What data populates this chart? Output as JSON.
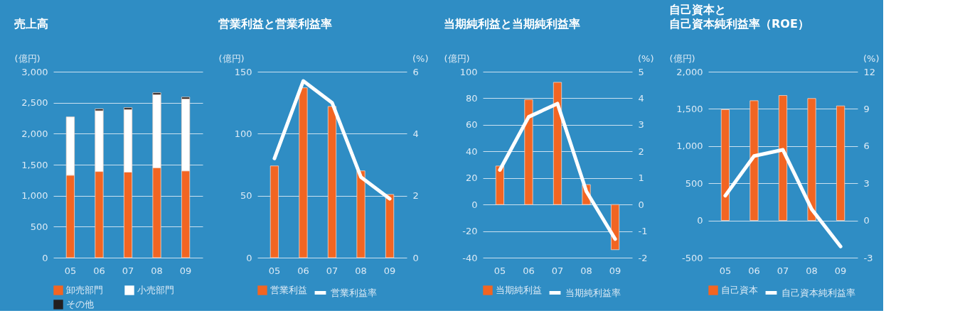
{
  "chart_data": [
    {
      "type": "bar",
      "title": "売上高",
      "ylabel": "(億円)",
      "categories": [
        "05",
        "06",
        "07",
        "08",
        "09"
      ],
      "stacked": true,
      "series": [
        {
          "name": "卸売部門",
          "color": "#f26522",
          "values": [
            1330,
            1390,
            1380,
            1450,
            1400
          ]
        },
        {
          "name": "小売部門",
          "color": "#ffffff",
          "values": [
            940,
            980,
            1010,
            1180,
            1160
          ]
        },
        {
          "name": "その他",
          "color": "#231f20",
          "values": [
            null,
            30,
            30,
            30,
            30
          ]
        }
      ],
      "ylim": [
        0,
        3000
      ],
      "yticks": [
        0,
        500,
        {
          "value": 1000,
          "label": "1,000"
        },
        {
          "value": 1500,
          "label": "1,500"
        },
        {
          "value": 2000,
          "label": "2,000"
        },
        {
          "value": 2500,
          "label": "2,500"
        },
        {
          "value": 3000,
          "label": "3,000"
        }
      ],
      "grid": "y",
      "legend": "bottom"
    },
    {
      "type": "bar",
      "title": "営業利益と営業利益率",
      "ylabel": "(億円)",
      "y2label": "(%)",
      "categories": [
        "05",
        "06",
        "07",
        "08",
        "09"
      ],
      "series": [
        {
          "name": "営業利益",
          "color": "#f26522",
          "values": [
            74,
            137,
            122,
            70,
            51
          ]
        },
        {
          "name": "営業利益率",
          "type": "line",
          "axis": "y2",
          "color": "#ffffff",
          "values": [
            3.2,
            5.7,
            5.0,
            2.6,
            1.9
          ]
        }
      ],
      "ylim": [
        0,
        150
      ],
      "yticks": [
        0,
        50,
        100,
        150
      ],
      "y2lim": [
        0,
        6
      ],
      "y2ticks": [
        0,
        2,
        4,
        6
      ],
      "grid": "y",
      "legend": "bottom",
      "marker": "none",
      "line_style": "solid"
    },
    {
      "type": "bar",
      "title": "当期純利益と当期純利益率",
      "ylabel": "(億円)",
      "y2label": "(%)",
      "categories": [
        "05",
        "06",
        "07",
        "08",
        "09"
      ],
      "series": [
        {
          "name": "当期純利益",
          "color": "#f26522",
          "values": [
            29,
            79,
            92,
            15,
            -34
          ]
        },
        {
          "name": "当期純利益率",
          "type": "line",
          "axis": "y2",
          "color": "#ffffff",
          "values": [
            1.3,
            3.3,
            3.8,
            0.5,
            -1.3
          ]
        }
      ],
      "ylim": [
        -40,
        100
      ],
      "yticks": [
        -40,
        -20,
        0,
        20,
        40,
        60,
        80,
        100
      ],
      "y2lim": [
        -2,
        5
      ],
      "y2ticks": [
        -2,
        -1,
        0,
        1,
        2,
        3,
        4,
        5
      ],
      "grid": "y",
      "legend": "bottom",
      "marker": "none",
      "line_style": "solid"
    },
    {
      "type": "bar",
      "title": [
        "自己資本と",
        "自己資本純利益率（ROE）"
      ],
      "ylabel": "(億円)",
      "y2label": "(%)",
      "categories": [
        "05",
        "06",
        "07",
        "08",
        "09"
      ],
      "series": [
        {
          "name": "自己資本",
          "color": "#f26522",
          "values": [
            1490,
            1610,
            1680,
            1640,
            1540
          ]
        },
        {
          "name": "自己資本純利益率",
          "type": "line",
          "axis": "y2",
          "color": "#ffffff",
          "values": [
            2.0,
            5.2,
            5.7,
            0.9,
            -2.1
          ]
        }
      ],
      "ylim": [
        -500,
        2000
      ],
      "yticks": [
        -500,
        0,
        500,
        {
          "value": 1000,
          "label": "1,000"
        },
        {
          "value": 1500,
          "label": "1,500"
        },
        {
          "value": 2000,
          "label": "2,000"
        }
      ],
      "y2lim": [
        -3,
        12
      ],
      "y2ticks": [
        -3,
        0,
        3,
        6,
        9,
        12
      ],
      "grid": "y",
      "legend": "bottom",
      "marker": "none",
      "line_style": "solid"
    }
  ]
}
